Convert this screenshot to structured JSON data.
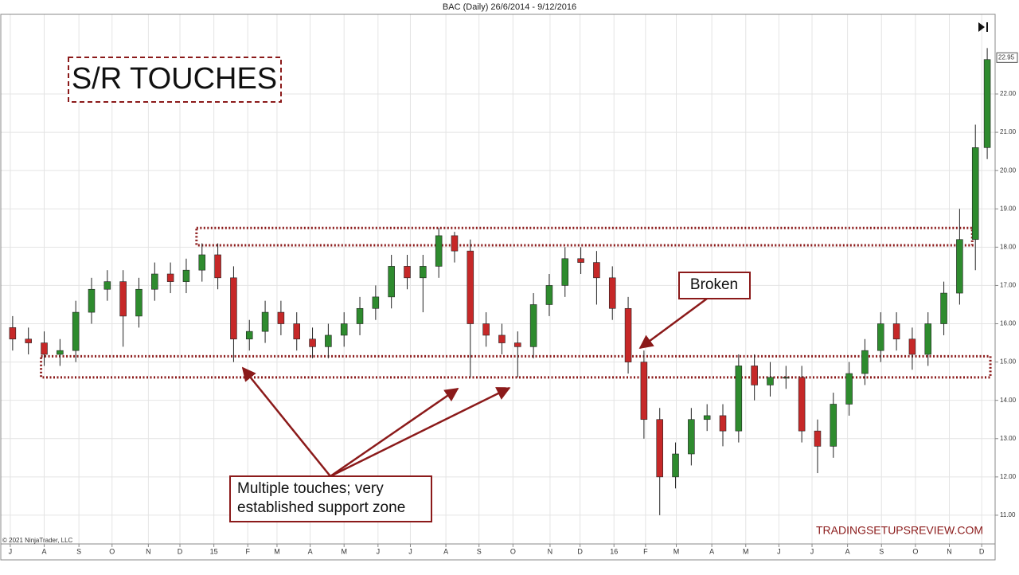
{
  "chart_data": {
    "type": "candlestick",
    "title": "BAC (Daily)  26/6/2014 - 9/12/2016",
    "up_color": "#2e8b2e",
    "down_color": "#c62828",
    "wick_color": "#222222",
    "grid": true,
    "xlim": [
      -0.5,
      125.5
    ],
    "ylim": [
      10.25,
      24.08
    ],
    "yticks": [
      {
        "value": 11,
        "label": "11.00"
      },
      {
        "value": 12,
        "label": "12.00"
      },
      {
        "value": 13,
        "label": "13.00"
      },
      {
        "value": 14,
        "label": "14.00"
      },
      {
        "value": 15,
        "label": "15.00"
      },
      {
        "value": 16,
        "label": "16.00"
      },
      {
        "value": 17,
        "label": "17.00"
      },
      {
        "value": 18,
        "label": "18.00"
      },
      {
        "value": 19,
        "label": "19.00"
      },
      {
        "value": 20,
        "label": "20.00"
      },
      {
        "value": 21,
        "label": "21.00"
      },
      {
        "value": 22,
        "label": "22.00"
      }
    ],
    "xticks": [
      {
        "value": 0.7,
        "label": "J"
      },
      {
        "value": 5.0,
        "label": "A"
      },
      {
        "value": 9.4,
        "label": "S"
      },
      {
        "value": 13.6,
        "label": "O"
      },
      {
        "value": 18.2,
        "label": "N"
      },
      {
        "value": 22.2,
        "label": "D"
      },
      {
        "value": 26.5,
        "label": "15"
      },
      {
        "value": 30.8,
        "label": "F"
      },
      {
        "value": 34.5,
        "label": "M"
      },
      {
        "value": 38.7,
        "label": "A"
      },
      {
        "value": 43.0,
        "label": "M"
      },
      {
        "value": 47.3,
        "label": "J"
      },
      {
        "value": 51.4,
        "label": "J"
      },
      {
        "value": 55.9,
        "label": "A"
      },
      {
        "value": 60.1,
        "label": "S"
      },
      {
        "value": 64.4,
        "label": "O"
      },
      {
        "value": 69.1,
        "label": "N"
      },
      {
        "value": 72.9,
        "label": "D"
      },
      {
        "value": 77.2,
        "label": "16"
      },
      {
        "value": 81.2,
        "label": "F"
      },
      {
        "value": 85.1,
        "label": "M"
      },
      {
        "value": 89.6,
        "label": "A"
      },
      {
        "value": 93.9,
        "label": "M"
      },
      {
        "value": 98.1,
        "label": "J"
      },
      {
        "value": 102.3,
        "label": "J"
      },
      {
        "value": 106.8,
        "label": "A"
      },
      {
        "value": 111.1,
        "label": "S"
      },
      {
        "value": 115.4,
        "label": "O"
      },
      {
        "value": 119.7,
        "label": "N"
      },
      {
        "value": 123.8,
        "label": "D"
      }
    ],
    "last_price": 22.95,
    "x": [
      1,
      3,
      5,
      7,
      9,
      11,
      13,
      15,
      17,
      19,
      21,
      23,
      25,
      27,
      29,
      31,
      33,
      35,
      37,
      39,
      41,
      43,
      45,
      47,
      49,
      51,
      53,
      55,
      57,
      59,
      61,
      63,
      65,
      67,
      69,
      71,
      73,
      75,
      77,
      79,
      81,
      83,
      85,
      87,
      89,
      91,
      93,
      95,
      97,
      99,
      101,
      103,
      105,
      107,
      109,
      111,
      113,
      115,
      117,
      119,
      121,
      123,
      124.5
    ],
    "open": [
      15.9,
      15.6,
      15.5,
      15.2,
      15.3,
      16.3,
      16.9,
      17.1,
      16.2,
      16.9,
      17.3,
      17.1,
      17.4,
      17.8,
      17.2,
      15.6,
      15.8,
      16.3,
      16.0,
      15.6,
      15.4,
      15.7,
      16.0,
      16.4,
      16.7,
      17.5,
      17.2,
      17.5,
      18.3,
      17.9,
      16.0,
      15.7,
      15.5,
      15.4,
      16.5,
      17.0,
      17.7,
      17.6,
      17.2,
      16.4,
      15.0,
      13.5,
      12.0,
      12.6,
      13.5,
      13.6,
      13.2,
      14.9,
      14.4,
      14.6,
      14.6,
      13.2,
      12.8,
      13.9,
      14.7,
      15.3,
      16.0,
      15.6,
      15.2,
      16.0,
      16.8,
      18.2,
      20.6
    ],
    "high": [
      16.2,
      15.9,
      15.8,
      15.6,
      16.6,
      17.2,
      17.4,
      17.4,
      17.2,
      17.6,
      17.6,
      17.7,
      18.1,
      18.1,
      17.5,
      16.1,
      16.6,
      16.6,
      16.3,
      15.9,
      16.0,
      16.3,
      16.7,
      17.0,
      17.8,
      17.8,
      17.8,
      18.5,
      18.4,
      18.2,
      16.3,
      16.0,
      15.8,
      16.8,
      17.3,
      18.0,
      18.0,
      17.9,
      17.5,
      16.7,
      15.3,
      13.8,
      12.9,
      13.8,
      13.9,
      13.9,
      15.2,
      15.2,
      15.0,
      14.9,
      14.9,
      13.5,
      14.2,
      15.0,
      15.6,
      16.3,
      16.3,
      15.9,
      16.3,
      17.1,
      19.0,
      21.2,
      23.2
    ],
    "low": [
      15.3,
      15.2,
      14.9,
      14.9,
      15.0,
      16.0,
      16.6,
      15.4,
      15.9,
      16.6,
      16.8,
      16.8,
      17.1,
      16.9,
      15.0,
      15.3,
      15.5,
      15.7,
      15.3,
      15.1,
      15.1,
      15.4,
      15.7,
      16.1,
      16.4,
      16.9,
      16.3,
      17.2,
      17.6,
      14.6,
      15.4,
      15.2,
      14.6,
      15.1,
      16.2,
      16.7,
      17.3,
      16.5,
      16.1,
      14.7,
      13.0,
      11.0,
      11.7,
      12.3,
      13.2,
      12.8,
      12.9,
      14.0,
      14.1,
      14.3,
      12.9,
      12.1,
      12.5,
      13.6,
      14.4,
      15.0,
      15.3,
      14.8,
      14.9,
      15.7,
      16.5,
      17.4,
      20.3
    ],
    "close": [
      15.6,
      15.5,
      15.2,
      15.3,
      16.3,
      16.9,
      17.1,
      16.2,
      16.9,
      17.3,
      17.1,
      17.4,
      17.8,
      17.2,
      15.6,
      15.8,
      16.3,
      16.0,
      15.6,
      15.4,
      15.7,
      16.0,
      16.4,
      16.7,
      17.5,
      17.2,
      17.5,
      18.3,
      17.9,
      16.0,
      15.7,
      15.5,
      15.4,
      16.5,
      17.0,
      17.7,
      17.6,
      17.2,
      16.4,
      15.0,
      13.5,
      12.0,
      12.6,
      13.5,
      13.6,
      13.2,
      14.9,
      14.4,
      14.6,
      14.6,
      13.2,
      12.8,
      13.9,
      14.7,
      15.3,
      16.0,
      15.6,
      15.2,
      16.0,
      16.8,
      18.2,
      20.6,
      22.9
    ],
    "zone_color": "#8b1a1a",
    "zones": [
      {
        "x": [
          24.3,
          122.6
        ],
        "y": [
          18.05,
          18.5
        ]
      },
      {
        "x": [
          4.6,
          124.9
        ],
        "y": [
          14.6,
          15.15
        ]
      }
    ],
    "annotations": {
      "heading": "S/R TOUCHES",
      "broken": "Broken",
      "multiple": [
        "Multiple touches; very",
        "established support zone"
      ]
    },
    "copyright": "© 2021 NinjaTrader, LLC",
    "watermark": "TRADINGSETUPSREVIEW.COM"
  }
}
